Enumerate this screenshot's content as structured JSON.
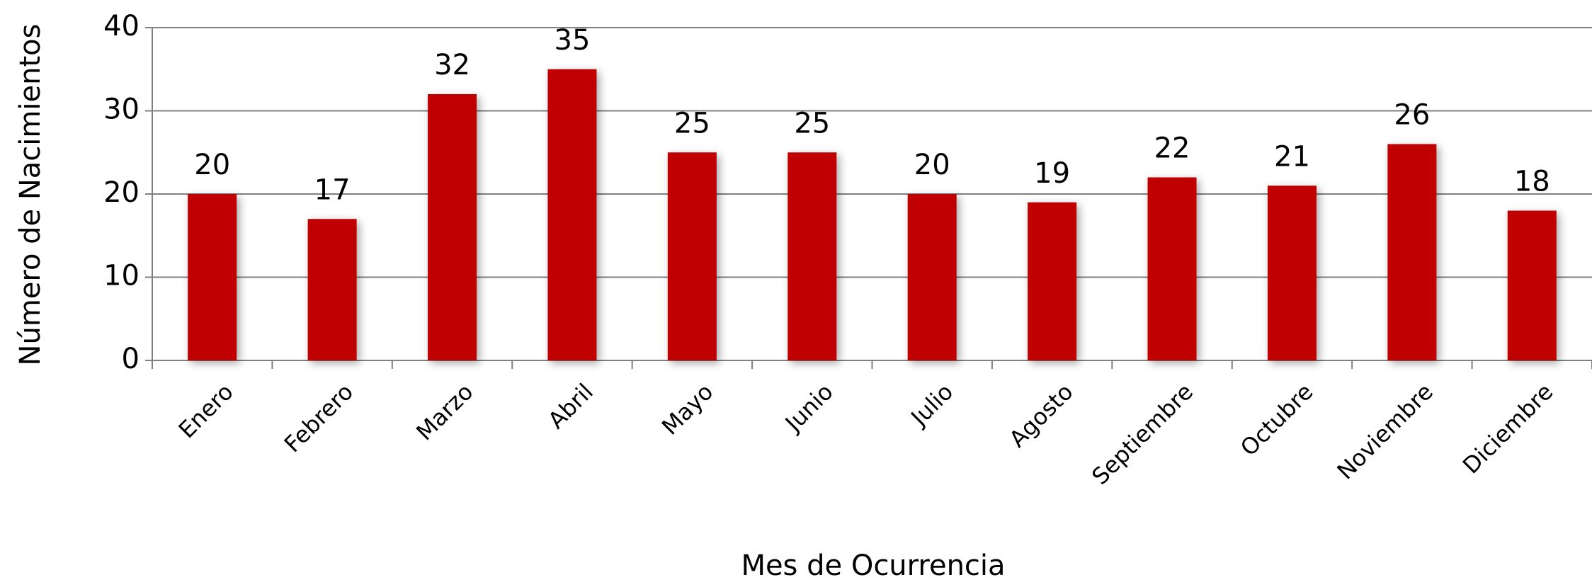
{
  "chart_data": {
    "type": "bar",
    "x_label": "Mes de Ocurrencia",
    "y_label": "Número de Nacimientos",
    "categories": [
      "Enero",
      "Febrero",
      "Marzo",
      "Abril",
      "Mayo",
      "Junio",
      "Julio",
      "Agosto",
      "Septiembre",
      "Octubre",
      "Noviembre",
      "Diciembre"
    ],
    "values": [
      20,
      17,
      32,
      35,
      25,
      25,
      20,
      19,
      22,
      21,
      26,
      18
    ],
    "color": "#c00000",
    "ylim": [
      0,
      40
    ],
    "yticks": [
      0,
      10,
      20,
      30,
      40
    ],
    "grid": true
  }
}
